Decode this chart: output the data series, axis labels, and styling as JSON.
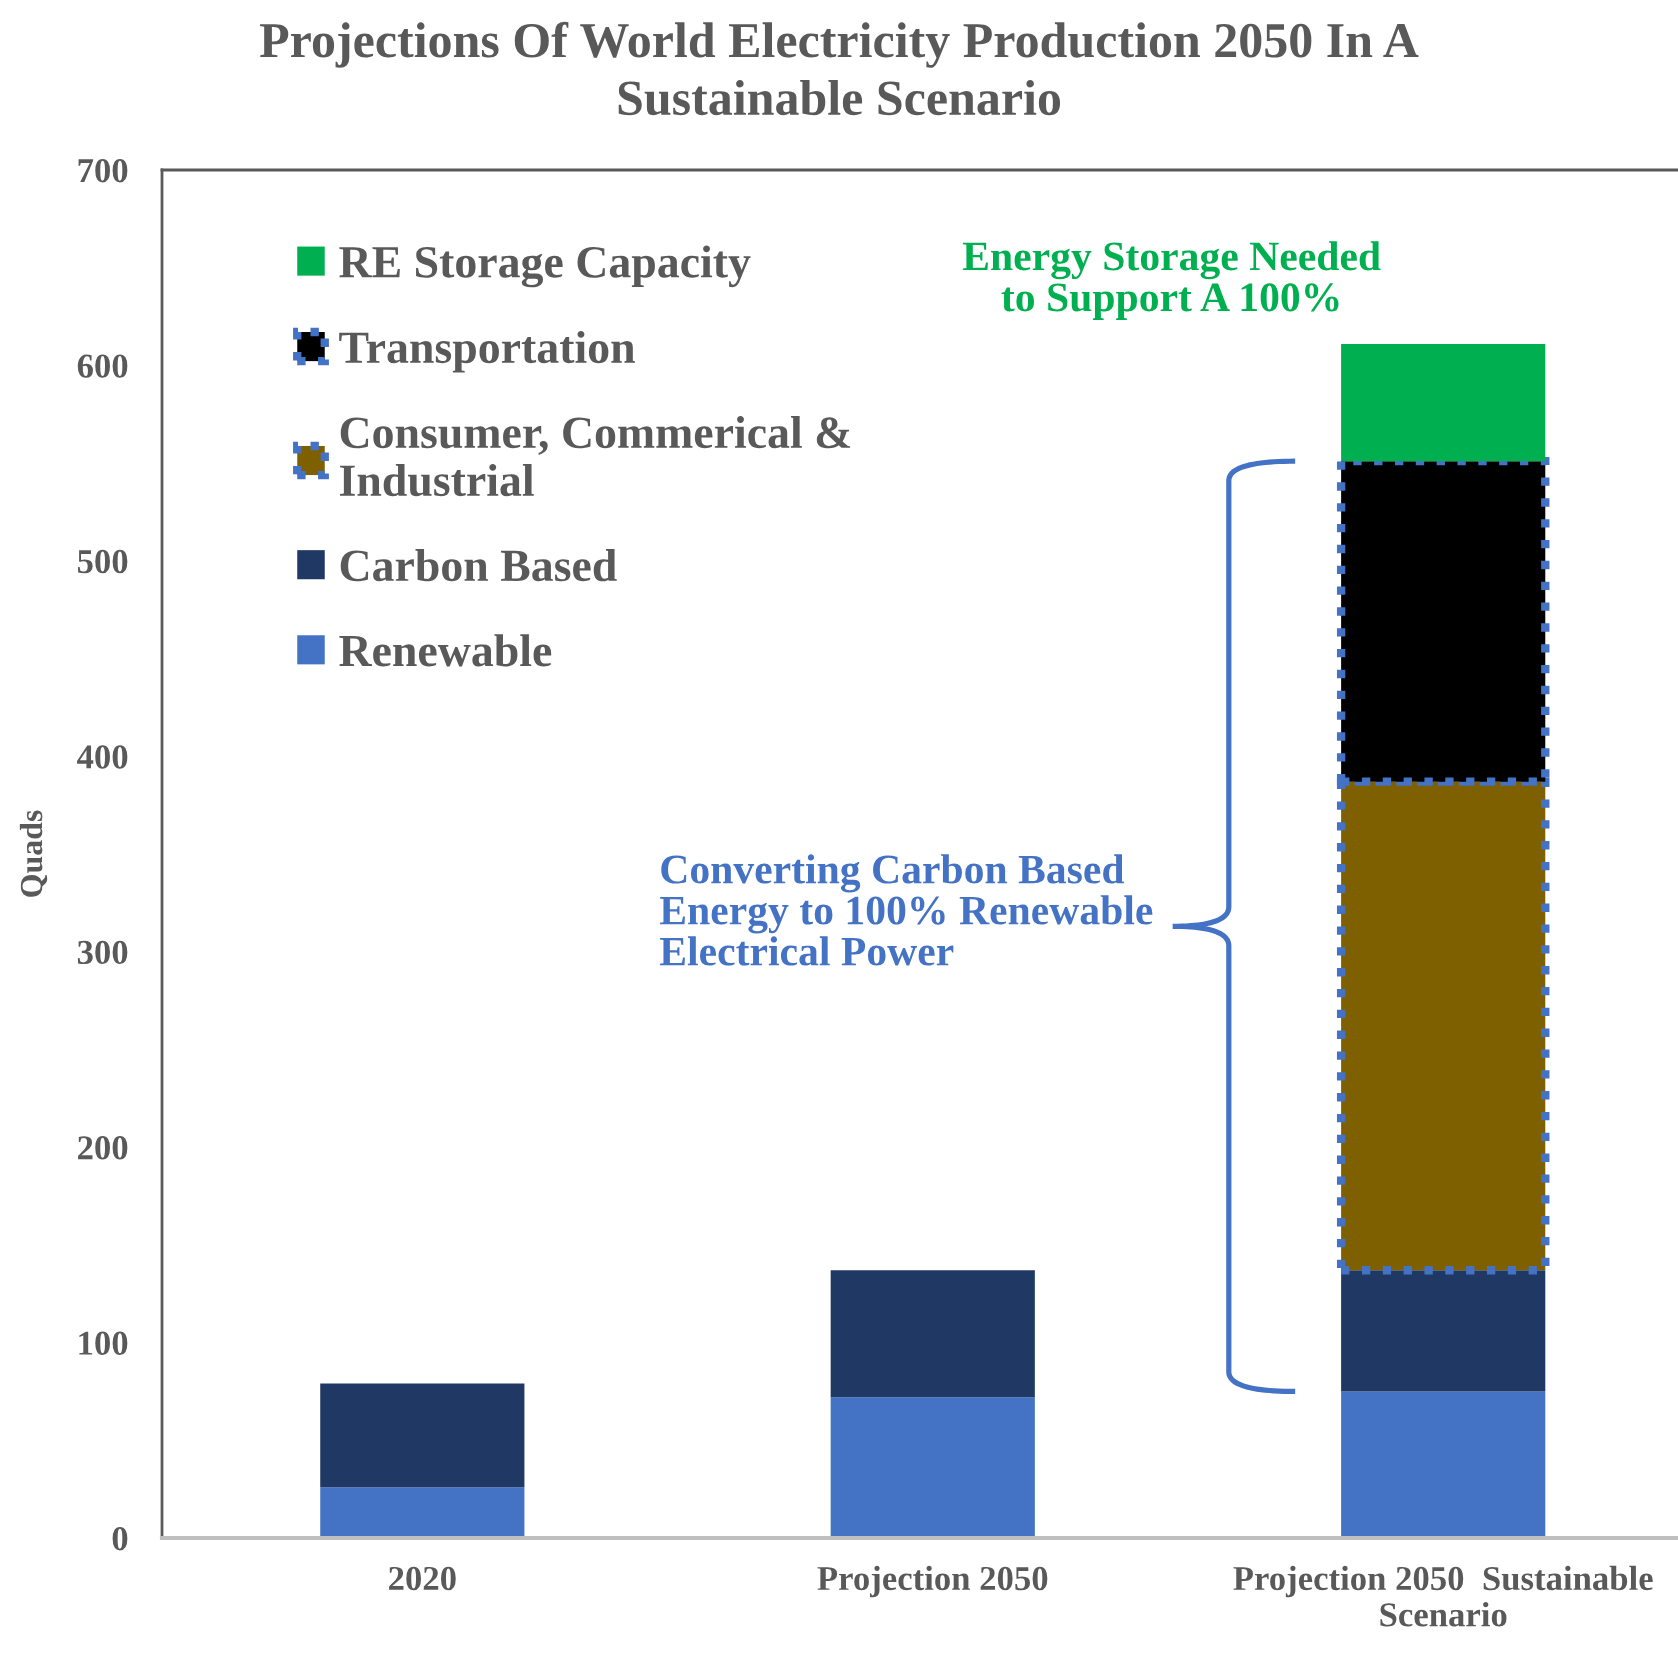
{
  "chart_data": {
    "type": "bar",
    "stacked": true,
    "title": "Projections Of World Electricity Production 2050 In A\nSustainable Scenario",
    "ylabel": "Quads",
    "categories": [
      "2020",
      "Projection 2050",
      "Projection 2050  Sustainable\nScenario"
    ],
    "series": [
      {
        "name": "Renewable",
        "color": "#4472c4",
        "values": [
          26,
          72,
          75
        ]
      },
      {
        "name": "Carbon Based",
        "color": "#1f3864",
        "values": [
          53,
          65,
          62
        ]
      },
      {
        "name": "Consumer, Commerical &\nIndustrial",
        "color": "#7f6000",
        "line_style": "dotted",
        "values": [
          null,
          null,
          250
        ]
      },
      {
        "name": "Transportation",
        "color": "#000000",
        "line_style": "dotted",
        "values": [
          null,
          null,
          164
        ]
      },
      {
        "name": "RE Storage Capacity",
        "color": "#00b050",
        "values": [
          null,
          null,
          60
        ]
      }
    ],
    "ylim": [
      0,
      700
    ],
    "yticks": [
      0,
      100,
      200,
      300,
      400,
      500,
      600,
      700
    ],
    "annotations": [
      "Energy Storage Needed\nto Support A 100%",
      "Converting Carbon Based\nEnergy to 100% Renewable\nElectrical Power"
    ],
    "legend": "top left",
    "grid": false
  }
}
